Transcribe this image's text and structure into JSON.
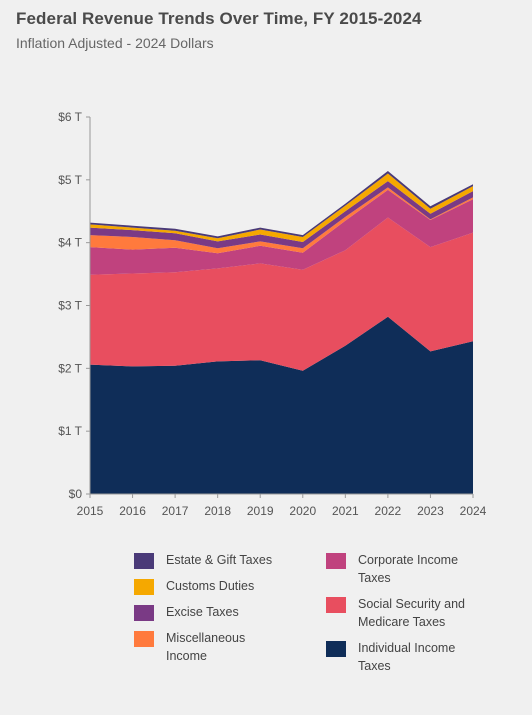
{
  "title": "Federal Revenue Trends Over Time, FY 2015-2024",
  "subtitle": "Inflation Adjusted - 2024 Dollars",
  "chart_data": {
    "type": "area",
    "stacked": true,
    "x": [
      2015,
      2016,
      2017,
      2018,
      2019,
      2020,
      2021,
      2022,
      2023,
      2024
    ],
    "ylim": [
      0,
      6
    ],
    "yticks": [
      "$0",
      "$1 T",
      "$2 T",
      "$3 T",
      "$4 T",
      "$5 T",
      "$6 T"
    ],
    "xticks": [
      "2015",
      "2016",
      "2017",
      "2018",
      "2019",
      "2020",
      "2021",
      "2022",
      "2023",
      "2024"
    ],
    "series": [
      {
        "name": "Individual Income Taxes",
        "color": "#0f2d58",
        "values": [
          2.06,
          2.03,
          2.04,
          2.11,
          2.13,
          1.96,
          2.36,
          2.82,
          2.27,
          2.43
        ]
      },
      {
        "name": "Social Security and Medicare Taxes",
        "color": "#e84e5f",
        "values": [
          1.43,
          1.48,
          1.49,
          1.48,
          1.54,
          1.61,
          1.52,
          1.58,
          1.66,
          1.73
        ]
      },
      {
        "name": "Corporate Income Taxes",
        "color": "#c0427e",
        "values": [
          0.44,
          0.38,
          0.39,
          0.24,
          0.28,
          0.27,
          0.47,
          0.44,
          0.43,
          0.53
        ]
      },
      {
        "name": "Miscellaneous Income",
        "color": "#ff7a3d",
        "values": [
          0.19,
          0.2,
          0.12,
          0.08,
          0.07,
          0.07,
          0.06,
          0.04,
          0.01,
          0.03
        ]
      },
      {
        "name": "Excise Taxes",
        "color": "#7a3a85",
        "values": [
          0.12,
          0.11,
          0.11,
          0.11,
          0.11,
          0.1,
          0.09,
          0.1,
          0.09,
          0.1
        ]
      },
      {
        "name": "Customs Duties",
        "color": "#f5a800",
        "values": [
          0.05,
          0.04,
          0.04,
          0.05,
          0.08,
          0.08,
          0.09,
          0.12,
          0.08,
          0.08
        ]
      },
      {
        "name": "Estate & Gift Taxes",
        "color": "#4a3a78",
        "values": [
          0.03,
          0.03,
          0.03,
          0.03,
          0.03,
          0.03,
          0.03,
          0.04,
          0.04,
          0.03
        ]
      }
    ],
    "legend_position": "bottom",
    "grid": false
  },
  "legend": [
    {
      "label": "Estate & Gift Taxes",
      "color": "#4a3a78"
    },
    {
      "label": "Customs Duties",
      "color": "#f5a800"
    },
    {
      "label": "Excise Taxes",
      "color": "#7a3a85"
    },
    {
      "label": "Miscellaneous Income",
      "color": "#ff7a3d"
    },
    {
      "label": "Corporate Income Taxes",
      "color": "#c0427e"
    },
    {
      "label": "Social Security and Medicare Taxes",
      "color": "#e84e5f"
    },
    {
      "label": "Individual Income Taxes",
      "color": "#0f2d58"
    }
  ]
}
